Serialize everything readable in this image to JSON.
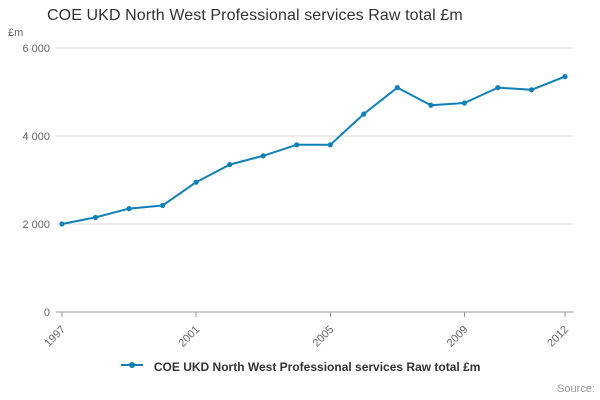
{
  "title": "COE UKD North West Professional services Raw total £m",
  "source_label": "Source:",
  "chart_data": {
    "type": "line",
    "title": "COE UKD North West Professional services Raw total £m",
    "xlabel": "",
    "ylabel": "£m",
    "x": [
      1997,
      1998,
      1999,
      2000,
      2001,
      2002,
      2003,
      2004,
      2005,
      2006,
      2007,
      2008,
      2009,
      2010,
      2011,
      2012
    ],
    "series": [
      {
        "name": "COE UKD North West Professional services Raw total £m",
        "values": [
          2000,
          2150,
          2350,
          2420,
          2950,
          3350,
          3550,
          3800,
          3800,
          4500,
          5100,
          4700,
          4750,
          5100,
          5050,
          5350
        ]
      }
    ],
    "ylim": [
      0,
      6000
    ],
    "yticks": [
      0,
      2000,
      4000,
      6000
    ],
    "ytick_labels": [
      "0",
      "2 000",
      "4 000",
      "6 000"
    ],
    "xticks": [
      1997,
      2001,
      2005,
      2009,
      2012
    ],
    "xtick_labels": [
      "1997",
      "2001",
      "2005",
      "2009",
      "2012"
    ],
    "grid": true,
    "legend_position": "bottom",
    "legend_label": "COE UKD North West Professional services Raw total £m",
    "line_color": "#1080b8",
    "grid_color": "#d8d8d8",
    "axis_color": "#999999",
    "tick_label_color": "#666666"
  }
}
